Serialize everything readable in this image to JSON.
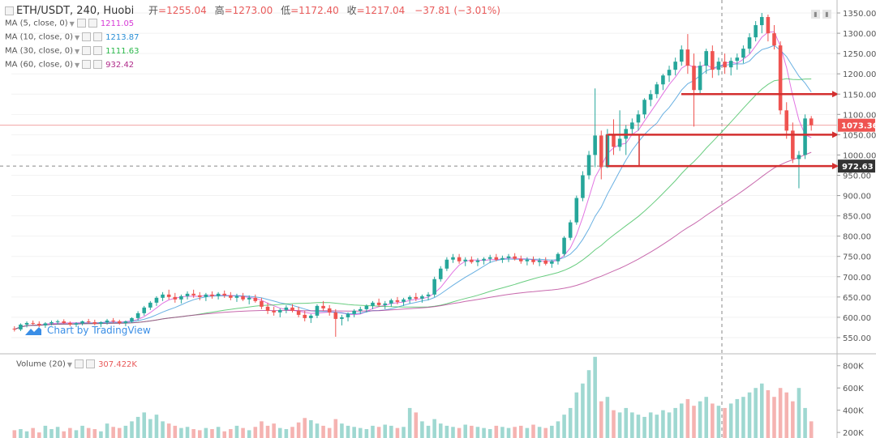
{
  "header": {
    "symbol": "ETH/USDT, 240, Huobi",
    "open_label": "开",
    "open": "=1255.04",
    "high_label": "高",
    "high": "=1273.00",
    "low_label": "低",
    "low": "=1172.40",
    "close_label": "收",
    "close": "=1217.04",
    "change": "−37.81 (−3.01%)"
  },
  "ma_rows": [
    {
      "label": "MA (5, close, 0)",
      "value": "1211.05",
      "color": "#d63ad6"
    },
    {
      "label": "MA (10, close, 0)",
      "value": "1213.87",
      "color": "#2a8fd6"
    },
    {
      "label": "MA (30, close, 0)",
      "value": "1111.63",
      "color": "#2ab84a"
    },
    {
      "label": "MA (60, close, 0)",
      "value": "932.42",
      "color": "#b02a8a"
    }
  ],
  "watermark": "Chart by TradingView",
  "volume": {
    "label": "Volume (20)",
    "value": "307.422K"
  },
  "price_axis": {
    "ticks": [
      "1350.00",
      "1300.00",
      "1250.00",
      "1200.00",
      "1150.00",
      "1100.00",
      "1050.00",
      "1000.00",
      "950.00",
      "900.00",
      "850.00",
      "800.00",
      "750.00",
      "700.00",
      "650.00",
      "600.00",
      "550.00"
    ],
    "current_label": "1073.36",
    "crosshair_label": "972.63"
  },
  "volume_axis": {
    "ticks": [
      "800K",
      "600K",
      "400K",
      "200K"
    ]
  },
  "colors": {
    "up": "#26a69a",
    "down": "#ef5350",
    "annotation": "#d32f2f"
  },
  "chart_data": {
    "type": "candlestick",
    "ylim": [
      510,
      1370
    ],
    "volume_ylim": [
      150,
      900
    ],
    "price_tick_values": [
      1350,
      1300,
      1250,
      1200,
      1150,
      1100,
      1050,
      1000,
      950,
      900,
      850,
      800,
      750,
      700,
      650,
      600,
      550
    ],
    "volume_tick_values": [
      800,
      600,
      400,
      200
    ],
    "current_price": 1073.36,
    "crosshair_price": 972.63,
    "horizontal_levels": [
      1150,
      1050,
      972.63
    ],
    "candles_ohlc": [
      [
        572,
        578,
        565,
        570
      ],
      [
        570,
        585,
        566,
        582
      ],
      [
        582,
        590,
        575,
        586
      ],
      [
        586,
        592,
        580,
        584
      ],
      [
        584,
        590,
        576,
        580
      ],
      [
        580,
        588,
        574,
        585
      ],
      [
        585,
        592,
        580,
        588
      ],
      [
        588,
        594,
        582,
        590
      ],
      [
        590,
        595,
        584,
        586
      ],
      [
        586,
        590,
        578,
        582
      ],
      [
        582,
        588,
        576,
        585
      ],
      [
        585,
        592,
        580,
        590
      ],
      [
        590,
        596,
        584,
        588
      ],
      [
        588,
        594,
        580,
        584
      ],
      [
        584,
        590,
        576,
        588
      ],
      [
        588,
        596,
        582,
        592
      ],
      [
        592,
        598,
        586,
        590
      ],
      [
        590,
        594,
        582,
        586
      ],
      [
        586,
        592,
        578,
        590
      ],
      [
        590,
        600,
        586,
        598
      ],
      [
        598,
        615,
        592,
        610
      ],
      [
        610,
        628,
        604,
        624
      ],
      [
        624,
        640,
        618,
        636
      ],
      [
        636,
        652,
        628,
        648
      ],
      [
        648,
        662,
        640,
        656
      ],
      [
        656,
        668,
        644,
        650
      ],
      [
        650,
        660,
        636,
        644
      ],
      [
        644,
        656,
        634,
        652
      ],
      [
        652,
        664,
        644,
        658
      ],
      [
        658,
        668,
        648,
        654
      ],
      [
        654,
        662,
        642,
        650
      ],
      [
        650,
        660,
        640,
        656
      ],
      [
        656,
        664,
        646,
        652
      ],
      [
        652,
        662,
        644,
        658
      ],
      [
        658,
        666,
        648,
        654
      ],
      [
        654,
        662,
        642,
        648
      ],
      [
        648,
        658,
        638,
        652
      ],
      [
        652,
        660,
        640,
        644
      ],
      [
        644,
        654,
        632,
        648
      ],
      [
        648,
        656,
        636,
        640
      ],
      [
        640,
        648,
        620,
        626
      ],
      [
        626,
        636,
        608,
        616
      ],
      [
        616,
        626,
        604,
        612
      ],
      [
        612,
        622,
        600,
        618
      ],
      [
        618,
        630,
        610,
        624
      ],
      [
        624,
        632,
        612,
        616
      ],
      [
        616,
        626,
        600,
        606
      ],
      [
        606,
        616,
        590,
        598
      ],
      [
        598,
        608,
        586,
        604
      ],
      [
        604,
        632,
        598,
        628
      ],
      [
        628,
        640,
        616,
        622
      ],
      [
        622,
        630,
        604,
        612
      ],
      [
        612,
        620,
        552,
        596
      ],
      [
        596,
        606,
        580,
        600
      ],
      [
        600,
        612,
        590,
        608
      ],
      [
        608,
        620,
        600,
        616
      ],
      [
        616,
        626,
        608,
        620
      ],
      [
        620,
        632,
        612,
        628
      ],
      [
        628,
        640,
        620,
        636
      ],
      [
        636,
        646,
        626,
        630
      ],
      [
        630,
        640,
        620,
        634
      ],
      [
        634,
        646,
        626,
        642
      ],
      [
        642,
        650,
        632,
        638
      ],
      [
        638,
        648,
        628,
        644
      ],
      [
        644,
        654,
        634,
        650
      ],
      [
        650,
        660,
        640,
        646
      ],
      [
        646,
        656,
        636,
        652
      ],
      [
        652,
        662,
        642,
        656
      ],
      [
        656,
        700,
        650,
        694
      ],
      [
        694,
        726,
        688,
        720
      ],
      [
        720,
        748,
        714,
        742
      ],
      [
        742,
        756,
        734,
        748
      ],
      [
        748,
        756,
        732,
        738
      ],
      [
        738,
        748,
        726,
        742
      ],
      [
        742,
        750,
        732,
        736
      ],
      [
        736,
        746,
        726,
        740
      ],
      [
        740,
        748,
        730,
        744
      ],
      [
        744,
        754,
        734,
        748
      ],
      [
        748,
        756,
        738,
        742
      ],
      [
        742,
        752,
        734,
        746
      ],
      [
        746,
        756,
        736,
        750
      ],
      [
        750,
        758,
        740,
        744
      ],
      [
        744,
        752,
        732,
        738
      ],
      [
        738,
        748,
        728,
        742
      ],
      [
        742,
        750,
        730,
        736
      ],
      [
        736,
        746,
        726,
        740
      ],
      [
        740,
        748,
        728,
        732
      ],
      [
        732,
        742,
        722,
        738
      ],
      [
        738,
        760,
        730,
        756
      ],
      [
        756,
        800,
        750,
        796
      ],
      [
        796,
        840,
        790,
        834
      ],
      [
        834,
        900,
        828,
        894
      ],
      [
        894,
        960,
        886,
        950
      ],
      [
        950,
        1010,
        940,
        1000
      ],
      [
        1000,
        1164,
        970,
        1048
      ],
      [
        1048,
        1060,
        940,
        970
      ],
      [
        970,
        1064,
        968,
        1050
      ],
      [
        1050,
        1088,
        1000,
        1020
      ],
      [
        1020,
        1110,
        1010,
        1040
      ],
      [
        1040,
        1074,
        1000,
        1064
      ],
      [
        1064,
        1090,
        1050,
        1080
      ],
      [
        1080,
        1110,
        1060,
        1100
      ],
      [
        1100,
        1140,
        1090,
        1136
      ],
      [
        1136,
        1160,
        1120,
        1150
      ],
      [
        1150,
        1180,
        1140,
        1174
      ],
      [
        1174,
        1200,
        1160,
        1196
      ],
      [
        1196,
        1220,
        1180,
        1210
      ],
      [
        1210,
        1240,
        1196,
        1230
      ],
      [
        1230,
        1270,
        1220,
        1260
      ],
      [
        1260,
        1298,
        1200,
        1220
      ],
      [
        1220,
        1250,
        1070,
        1160
      ],
      [
        1160,
        1230,
        1150,
        1220
      ],
      [
        1220,
        1262,
        1200,
        1256
      ],
      [
        1256,
        1270,
        1190,
        1210
      ],
      [
        1210,
        1240,
        1196,
        1230
      ],
      [
        1230,
        1250,
        1200,
        1216
      ],
      [
        1216,
        1240,
        1196,
        1232
      ],
      [
        1232,
        1250,
        1210,
        1240
      ],
      [
        1240,
        1270,
        1226,
        1262
      ],
      [
        1262,
        1300,
        1250,
        1290
      ],
      [
        1290,
        1330,
        1280,
        1320
      ],
      [
        1320,
        1350,
        1300,
        1340
      ],
      [
        1340,
        1346,
        1280,
        1300
      ],
      [
        1300,
        1320,
        1260,
        1270
      ],
      [
        1270,
        1280,
        1100,
        1110
      ],
      [
        1110,
        1130,
        1040,
        1060
      ],
      [
        1060,
        1080,
        980,
        990
      ],
      [
        990,
        1010,
        918,
        1000
      ],
      [
        1000,
        1100,
        990,
        1090
      ],
      [
        1090,
        1096,
        1060,
        1073.36
      ]
    ],
    "volumes": [
      220,
      230,
      210,
      240,
      200,
      260,
      230,
      250,
      210,
      240,
      220,
      260,
      240,
      230,
      210,
      280,
      250,
      240,
      260,
      300,
      340,
      380,
      320,
      360,
      300,
      280,
      260,
      240,
      250,
      230,
      220,
      240,
      230,
      250,
      210,
      230,
      260,
      240,
      220,
      250,
      300,
      260,
      280,
      240,
      230,
      250,
      290,
      330,
      310,
      280,
      260,
      240,
      320,
      280,
      260,
      250,
      240,
      230,
      260,
      250,
      270,
      260,
      240,
      250,
      420,
      380,
      300,
      260,
      320,
      280,
      260,
      250,
      240,
      270,
      260,
      250,
      240,
      230,
      260,
      250,
      240,
      250,
      260,
      240,
      270,
      250,
      240,
      260,
      300,
      360,
      420,
      560,
      640,
      760,
      880,
      480,
      520,
      400,
      380,
      420,
      380,
      360,
      340,
      380,
      360,
      400,
      380,
      420,
      460,
      500,
      440,
      480,
      520,
      460,
      440,
      420,
      460,
      500,
      520,
      560,
      600,
      640,
      580,
      520,
      600,
      560,
      480,
      600,
      420,
      300
    ]
  }
}
